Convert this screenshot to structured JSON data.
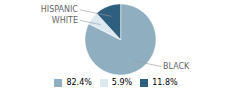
{
  "chart_data": {
    "type": "pie",
    "categories": [
      "BLACK",
      "WHITE",
      "HISPANIC"
    ],
    "values": [
      82.4,
      5.9,
      11.8
    ],
    "value_labels": [
      "82.4%",
      "5.9%",
      "11.8%"
    ],
    "colors": [
      "#8fafc0",
      "#dce9f0",
      "#2e5f7e"
    ],
    "legend": "bottom"
  }
}
